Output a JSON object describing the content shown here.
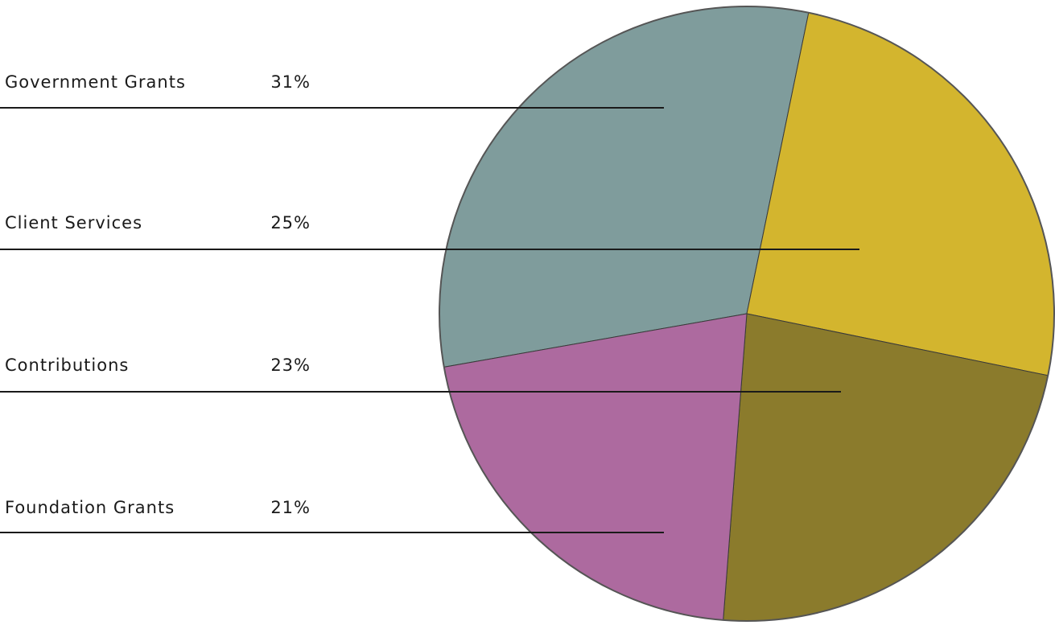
{
  "chart_data": {
    "type": "pie",
    "categories": [
      "Government Grants",
      "Client Services",
      "Contributions",
      "Foundation Grants"
    ],
    "values": [
      31,
      25,
      23,
      21
    ],
    "value_labels": [
      "31%",
      "25%",
      "23%",
      "21%"
    ],
    "colors": [
      "#7f9c9c",
      "#d3b52e",
      "#8b7b2c",
      "#ad6a9f"
    ]
  }
}
